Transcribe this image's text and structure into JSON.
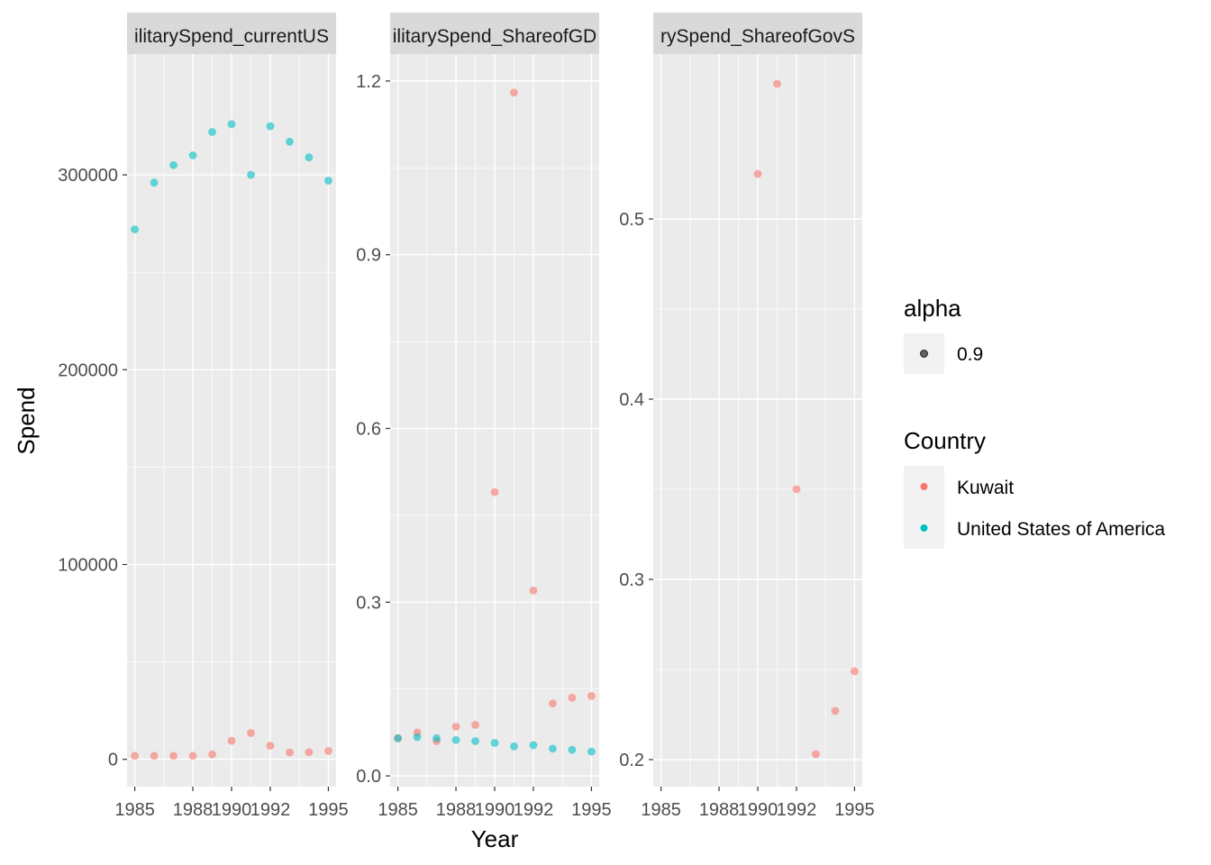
{
  "chart_data": {
    "type": "scatter",
    "ylabel": "Spend",
    "xlabel": "Year",
    "x_ticks": [
      1985,
      1988,
      1990,
      1992,
      1995
    ],
    "xlim": [
      1984.6,
      1995.4
    ],
    "grid": true,
    "legend_position": "right",
    "colors": {
      "Kuwait": "#F8766D",
      "United States of America": "#00BFC4",
      "alpha_key": "#000000"
    },
    "point_alpha": 0.6,
    "legends": [
      {
        "title": "alpha",
        "entries": [
          {
            "label": "0.9"
          }
        ]
      },
      {
        "title": "Country",
        "entries": [
          {
            "label": "Kuwait"
          },
          {
            "label": "United States of America"
          }
        ]
      }
    ],
    "panels": [
      {
        "strip": "ilitarySpend_currentUS",
        "ylim": [
          -14000,
          362000
        ],
        "y_ticks": [
          0,
          100000,
          200000,
          300000
        ],
        "y_tick_labels": [
          "0",
          "100000",
          "200000",
          "300000"
        ],
        "series": [
          {
            "name": "Kuwait",
            "points": [
              [
                1985,
                1800
              ],
              [
                1986,
                1800
              ],
              [
                1987,
                1800
              ],
              [
                1988,
                1800
              ],
              [
                1989,
                2500
              ],
              [
                1990,
                9500
              ],
              [
                1991,
                13500
              ],
              [
                1992,
                7000
              ],
              [
                1993,
                3500
              ],
              [
                1994,
                3700
              ],
              [
                1995,
                4300
              ]
            ]
          },
          {
            "name": "United States of America",
            "points": [
              [
                1985,
                272000
              ],
              [
                1986,
                296000
              ],
              [
                1987,
                305000
              ],
              [
                1988,
                310000
              ],
              [
                1989,
                322000
              ],
              [
                1990,
                326000
              ],
              [
                1991,
                300000
              ],
              [
                1992,
                325000
              ],
              [
                1993,
                317000
              ],
              [
                1994,
                309000
              ],
              [
                1995,
                297000
              ]
            ]
          }
        ]
      },
      {
        "strip": "ilitarySpend_ShareofGD",
        "ylim": [
          -0.0185,
          1.2465
        ],
        "y_ticks": [
          0,
          0.3,
          0.6,
          0.9,
          1.2
        ],
        "y_tick_labels": [
          "0.0",
          "0.3",
          "0.6",
          "0.9",
          "1.2"
        ],
        "series": [
          {
            "name": "Kuwait",
            "points": [
              [
                1985,
                0.065
              ],
              [
                1986,
                0.075
              ],
              [
                1987,
                0.06
              ],
              [
                1988,
                0.085
              ],
              [
                1989,
                0.088
              ],
              [
                1990,
                0.49
              ],
              [
                1991,
                1.18
              ],
              [
                1992,
                0.32
              ],
              [
                1993,
                0.125
              ],
              [
                1994,
                0.135
              ],
              [
                1995,
                0.138
              ]
            ]
          },
          {
            "name": "United States of America",
            "points": [
              [
                1985,
                0.065
              ],
              [
                1986,
                0.067
              ],
              [
                1987,
                0.065
              ],
              [
                1988,
                0.062
              ],
              [
                1989,
                0.06
              ],
              [
                1990,
                0.057
              ],
              [
                1991,
                0.051
              ],
              [
                1992,
                0.053
              ],
              [
                1993,
                0.047
              ],
              [
                1994,
                0.045
              ],
              [
                1995,
                0.042
              ]
            ]
          }
        ]
      },
      {
        "strip": "rySpend_ShareofGovS",
        "ylim": [
          0.185,
          0.5915
        ],
        "y_ticks": [
          0.2,
          0.3,
          0.4,
          0.5
        ],
        "y_tick_labels": [
          "0.2",
          "0.3",
          "0.4",
          "0.5"
        ],
        "series": [
          {
            "name": "Kuwait",
            "points": [
              [
                1990,
                0.525
              ],
              [
                1991,
                0.575
              ],
              [
                1992,
                0.35
              ],
              [
                1993,
                0.203
              ],
              [
                1994,
                0.227
              ],
              [
                1995,
                0.249
              ]
            ]
          }
        ]
      }
    ]
  }
}
